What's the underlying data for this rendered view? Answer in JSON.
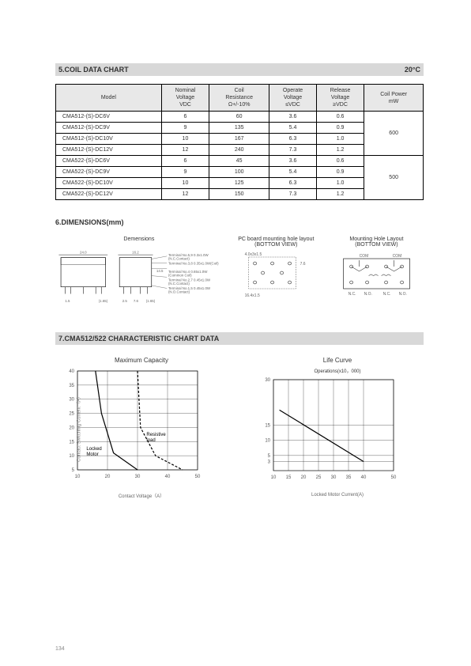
{
  "section5": {
    "title": "5.COIL DATA CHART",
    "temp": "20°C",
    "headers": [
      "Model",
      "Nominal\nVoltage\nVDC",
      "Coil\nResistance\nΩ+/-10%",
      "Operate\nVoltage\n≤VDC",
      "Release\nVoltage\n≥VDC",
      "Coil Power\nmW"
    ],
    "rows": [
      [
        "CMA512-(S)-DC6V",
        "6",
        "60",
        "3.6",
        "0.6"
      ],
      [
        "CMA512-(S)-DC9V",
        "9",
        "135",
        "5.4",
        "0.9"
      ],
      [
        "CMA512-(S)-DC10V",
        "10",
        "167",
        "6.3",
        "1.0"
      ],
      [
        "CMA512-(S)-DC12V",
        "12",
        "240",
        "7.3",
        "1.2"
      ],
      [
        "CMA522-(S)-DC6V",
        "6",
        "45",
        "3.6",
        "0.6"
      ],
      [
        "CMA522-(S)-DC9V",
        "9",
        "100",
        "5.4",
        "0.9"
      ],
      [
        "CMA522-(S)-DC10V",
        "10",
        "125",
        "6.3",
        "1.0"
      ],
      [
        "CMA522-(S)-DC12V",
        "12",
        "150",
        "7.3",
        "1.2"
      ]
    ],
    "power": [
      "600",
      "500"
    ]
  },
  "section6": {
    "title": "6.DIMENSIONS(mm)",
    "dem_title": "Demensions",
    "pcb_title": "PC board mounting hole layout\n(BOTTOM VIEW)",
    "mount_title": "Mounting Hole Layout\n(BOTTOM VIEW)",
    "terminals": [
      "Terminal No.5,9 0.3x1.0W\n(N.C.Contact)",
      "Terminal No.3,8 0.35x1.0W(Coil)",
      "Terminal No.4 0.65x1.0W\n(Common Coil)",
      "Terminal No.2,7 0.45x1.0W\n(N.C.Contact)",
      "Terminal No.1,5 0.45x1.0W\n(N.O.Contact)"
    ],
    "dims": {
      "front_w": "24.0",
      "side_w": "16.2",
      "h": "14.5",
      "pin_a": "1.5",
      "pin_b": "2.5",
      "pin_c": "7.6",
      "bracket": "(1.65)"
    },
    "pcb_dims": {
      "a": "4.0x3x1.5",
      "b": "7.6",
      "c": "2.5x3x1.5",
      "d": "16.4x1.5"
    },
    "mount_labels": {
      "com": "COM",
      "nc": "N.C.",
      "no": "N.O."
    }
  },
  "section7": {
    "title": "7.CMA512/522  CHARACTERISTIC CHART DATA",
    "chart1": {
      "title": "Maximum Capacity",
      "ylabel": "Contact Switching Current（A）",
      "xlabel": "Contact Voltage（A）",
      "yticks": [
        5,
        10,
        15,
        20,
        25,
        30,
        35,
        40
      ],
      "xticks": [
        10,
        20,
        30,
        40,
        50
      ],
      "labels": {
        "locked": "Locked\nMotor",
        "resistive": "Resistive\nload"
      },
      "line_locked": [
        [
          16,
          40
        ],
        [
          18,
          25
        ],
        [
          22,
          11
        ],
        [
          30,
          5
        ]
      ],
      "line_resistive": [
        [
          30,
          40
        ],
        [
          31,
          20
        ],
        [
          36,
          10
        ],
        [
          45,
          5
        ]
      ],
      "colors": {
        "line": "#000000",
        "grid": "#000000",
        "bg": "#ffffff"
      }
    },
    "chart2": {
      "title": "Life Curve",
      "sub": "Operations(x10，000)",
      "xlabel": "Locked Motor Current(A)",
      "yticks": [
        3,
        5,
        10,
        15,
        30
      ],
      "xticks": [
        10,
        15,
        20,
        25,
        30,
        35,
        40,
        50
      ],
      "line": [
        [
          12,
          20
        ],
        [
          40,
          3
        ]
      ],
      "ylim": [
        0,
        30
      ],
      "colors": {
        "line": "#000000",
        "grid": "#000000",
        "bg": "#ffffff"
      }
    }
  },
  "page": "134"
}
